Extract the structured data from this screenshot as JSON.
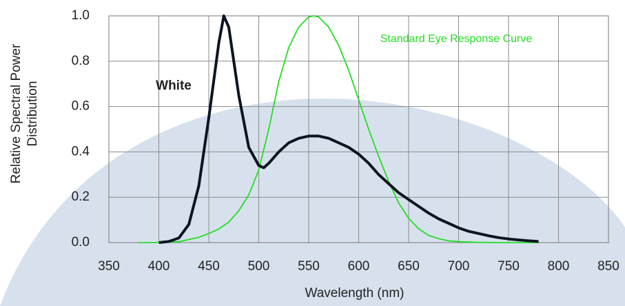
{
  "chart_data": {
    "type": "line",
    "xlabel": "Wavelength (nm)",
    "ylabel": [
      "Relative Spectral Power",
      "Distribution"
    ],
    "xlim": [
      350,
      850
    ],
    "xticks": [
      350,
      400,
      450,
      500,
      550,
      600,
      650,
      700,
      750,
      800,
      850
    ],
    "ylim": [
      0,
      1
    ],
    "yticks": [
      {
        "value": 0,
        "label": "0.0"
      },
      0.2,
      0.4,
      0.6,
      0.8,
      {
        "value": 1,
        "label": "1.0"
      }
    ],
    "grid": true,
    "series": [
      {
        "name": "White",
        "color": "#0d1520",
        "x": [
          400,
          410,
          420,
          430,
          440,
          450,
          460,
          465,
          470,
          480,
          490,
          500,
          505,
          510,
          520,
          530,
          540,
          550,
          560,
          570,
          580,
          590,
          600,
          610,
          620,
          630,
          640,
          650,
          660,
          670,
          680,
          690,
          700,
          710,
          720,
          730,
          740,
          750,
          760,
          770,
          780
        ],
        "values": [
          0,
          0.005,
          0.02,
          0.08,
          0.25,
          0.55,
          0.88,
          1.0,
          0.95,
          0.65,
          0.42,
          0.34,
          0.33,
          0.35,
          0.4,
          0.44,
          0.46,
          0.47,
          0.47,
          0.46,
          0.44,
          0.42,
          0.39,
          0.35,
          0.3,
          0.26,
          0.22,
          0.19,
          0.16,
          0.13,
          0.105,
          0.085,
          0.065,
          0.05,
          0.04,
          0.03,
          0.022,
          0.016,
          0.012,
          0.008,
          0.005
        ]
      },
      {
        "name": "Standard Eye Response Curve",
        "color": "#22dd22",
        "x": [
          380,
          400,
          420,
          440,
          450,
          460,
          470,
          480,
          490,
          500,
          510,
          520,
          530,
          540,
          550,
          555,
          560,
          570,
          580,
          590,
          600,
          610,
          620,
          630,
          640,
          650,
          660,
          670,
          680,
          690,
          700,
          720,
          740,
          780
        ],
        "values": [
          0,
          0.0004,
          0.004,
          0.023,
          0.04,
          0.06,
          0.09,
          0.14,
          0.21,
          0.32,
          0.5,
          0.71,
          0.86,
          0.95,
          0.995,
          1.0,
          0.995,
          0.95,
          0.87,
          0.76,
          0.63,
          0.5,
          0.38,
          0.27,
          0.175,
          0.107,
          0.061,
          0.032,
          0.017,
          0.008,
          0.004,
          0.001,
          0,
          0
        ]
      }
    ]
  }
}
